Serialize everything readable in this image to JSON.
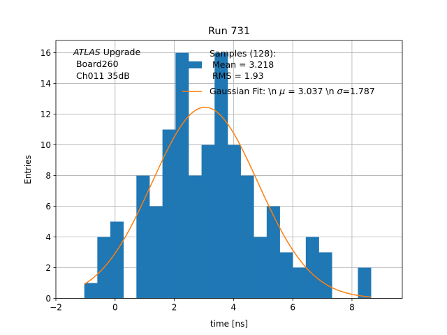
{
  "chart_data": {
    "type": "bar",
    "title": "Run 731",
    "xlabel": "time [ns]",
    "ylabel": "Entries",
    "xlim": [
      -2,
      9.7
    ],
    "ylim": [
      0,
      16.8
    ],
    "xticks": [
      -2,
      0,
      2,
      4,
      6,
      8
    ],
    "yticks": [
      0,
      2,
      4,
      6,
      8,
      10,
      12,
      14,
      16
    ],
    "grid": true,
    "bin_width": 0.44,
    "bin_start": -1.04,
    "values": [
      1,
      4,
      5,
      0,
      8,
      6,
      11,
      16,
      8,
      10,
      16,
      10,
      8,
      4,
      6,
      3,
      2,
      4,
      3,
      0,
      0,
      2
    ],
    "series": [
      {
        "name": "Samples (128):\n Mean = 3.218\n RMS = 1.93",
        "kind": "histogram",
        "color": "#1f77b4"
      },
      {
        "name": "Gaussian Fit: \\n $\\mu$ = 3.037 \\n $\\sigma$=1.787",
        "kind": "line",
        "color": "#ff7f0e",
        "mu": 3.037,
        "sigma": 1.787,
        "amplitude": 12.45,
        "x_range": [
          -1.04,
          8.64
        ]
      }
    ],
    "legend": {
      "placement": "top-right",
      "histogram_label_lines": [
        "Samples (128):",
        " Mean = 3.218",
        " RMS = 1.93"
      ],
      "fit_label_pre": "Gaussian Fit: \\n ",
      "fit_label_mu": "μ",
      "fit_label_mid": " = 3.037 \\n ",
      "fit_label_sigma": "σ",
      "fit_label_post": "=1.787"
    },
    "annotation": {
      "line1_italic": "ATLAS",
      "line1_rest": " Upgrade",
      "line2": " Board260",
      "line3": " Ch011 35dB"
    }
  }
}
